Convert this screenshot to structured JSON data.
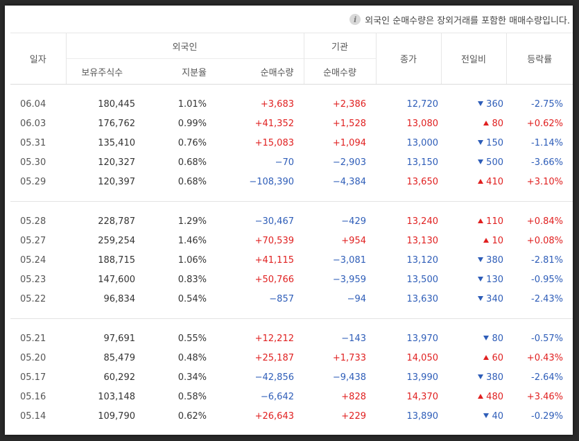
{
  "notice": "외국인 순매수량은 장외거래를 포함한 매매수량입니다.",
  "headers": {
    "date": "일자",
    "foreigner": "외국인",
    "institution": "기관",
    "close": "종가",
    "change": "전일비",
    "rate": "등락률",
    "shares_held": "보유주식수",
    "holding_ratio": "지분율",
    "foreign_net": "순매수량",
    "inst_net": "순매수량"
  },
  "colors": {
    "up": "#e02020",
    "down": "#2e5db8"
  },
  "groups": [
    [
      {
        "date": "06.04",
        "shares": "180,445",
        "ratio": "1.01%",
        "fnet": "+3,683",
        "fdir": "up",
        "inet": "+2,386",
        "idir": "up",
        "close": "12,720",
        "cdir": "down",
        "change": "360",
        "chdir": "down",
        "rate": "-2.75%",
        "rdir": "down"
      },
      {
        "date": "06.03",
        "shares": "176,762",
        "ratio": "0.99%",
        "fnet": "+41,352",
        "fdir": "up",
        "inet": "+1,528",
        "idir": "up",
        "close": "13,080",
        "cdir": "up",
        "change": "80",
        "chdir": "up",
        "rate": "+0.62%",
        "rdir": "up"
      },
      {
        "date": "05.31",
        "shares": "135,410",
        "ratio": "0.76%",
        "fnet": "+15,083",
        "fdir": "up",
        "inet": "+1,094",
        "idir": "up",
        "close": "13,000",
        "cdir": "down",
        "change": "150",
        "chdir": "down",
        "rate": "-1.14%",
        "rdir": "down"
      },
      {
        "date": "05.30",
        "shares": "120,327",
        "ratio": "0.68%",
        "fnet": "−70",
        "fdir": "down",
        "inet": "−2,903",
        "idir": "down",
        "close": "13,150",
        "cdir": "down",
        "change": "500",
        "chdir": "down",
        "rate": "-3.66%",
        "rdir": "down"
      },
      {
        "date": "05.29",
        "shares": "120,397",
        "ratio": "0.68%",
        "fnet": "−108,390",
        "fdir": "down",
        "inet": "−4,384",
        "idir": "down",
        "close": "13,650",
        "cdir": "up",
        "change": "410",
        "chdir": "up",
        "rate": "+3.10%",
        "rdir": "up"
      }
    ],
    [
      {
        "date": "05.28",
        "shares": "228,787",
        "ratio": "1.29%",
        "fnet": "−30,467",
        "fdir": "down",
        "inet": "−429",
        "idir": "down",
        "close": "13,240",
        "cdir": "up",
        "change": "110",
        "chdir": "up",
        "rate": "+0.84%",
        "rdir": "up"
      },
      {
        "date": "05.27",
        "shares": "259,254",
        "ratio": "1.46%",
        "fnet": "+70,539",
        "fdir": "up",
        "inet": "+954",
        "idir": "up",
        "close": "13,130",
        "cdir": "up",
        "change": "10",
        "chdir": "up",
        "rate": "+0.08%",
        "rdir": "up"
      },
      {
        "date": "05.24",
        "shares": "188,715",
        "ratio": "1.06%",
        "fnet": "+41,115",
        "fdir": "up",
        "inet": "−3,081",
        "idir": "down",
        "close": "13,120",
        "cdir": "down",
        "change": "380",
        "chdir": "down",
        "rate": "-2.81%",
        "rdir": "down"
      },
      {
        "date": "05.23",
        "shares": "147,600",
        "ratio": "0.83%",
        "fnet": "+50,766",
        "fdir": "up",
        "inet": "−3,959",
        "idir": "down",
        "close": "13,500",
        "cdir": "down",
        "change": "130",
        "chdir": "down",
        "rate": "-0.95%",
        "rdir": "down"
      },
      {
        "date": "05.22",
        "shares": "96,834",
        "ratio": "0.54%",
        "fnet": "−857",
        "fdir": "down",
        "inet": "−94",
        "idir": "down",
        "close": "13,630",
        "cdir": "down",
        "change": "340",
        "chdir": "down",
        "rate": "-2.43%",
        "rdir": "down"
      }
    ],
    [
      {
        "date": "05.21",
        "shares": "97,691",
        "ratio": "0.55%",
        "fnet": "+12,212",
        "fdir": "up",
        "inet": "−143",
        "idir": "down",
        "close": "13,970",
        "cdir": "down",
        "change": "80",
        "chdir": "down",
        "rate": "-0.57%",
        "rdir": "down"
      },
      {
        "date": "05.20",
        "shares": "85,479",
        "ratio": "0.48%",
        "fnet": "+25,187",
        "fdir": "up",
        "inet": "+1,733",
        "idir": "up",
        "close": "14,050",
        "cdir": "up",
        "change": "60",
        "chdir": "up",
        "rate": "+0.43%",
        "rdir": "up"
      },
      {
        "date": "05.17",
        "shares": "60,292",
        "ratio": "0.34%",
        "fnet": "−42,856",
        "fdir": "down",
        "inet": "−9,438",
        "idir": "down",
        "close": "13,990",
        "cdir": "down",
        "change": "380",
        "chdir": "down",
        "rate": "-2.64%",
        "rdir": "down"
      },
      {
        "date": "05.16",
        "shares": "103,148",
        "ratio": "0.58%",
        "fnet": "−6,642",
        "fdir": "down",
        "inet": "+828",
        "idir": "up",
        "close": "14,370",
        "cdir": "up",
        "change": "480",
        "chdir": "up",
        "rate": "+3.46%",
        "rdir": "up"
      },
      {
        "date": "05.14",
        "shares": "109,790",
        "ratio": "0.62%",
        "fnet": "+26,643",
        "fdir": "up",
        "inet": "+229",
        "idir": "up",
        "close": "13,890",
        "cdir": "down",
        "change": "40",
        "chdir": "down",
        "rate": "-0.29%",
        "rdir": "down"
      }
    ]
  ]
}
